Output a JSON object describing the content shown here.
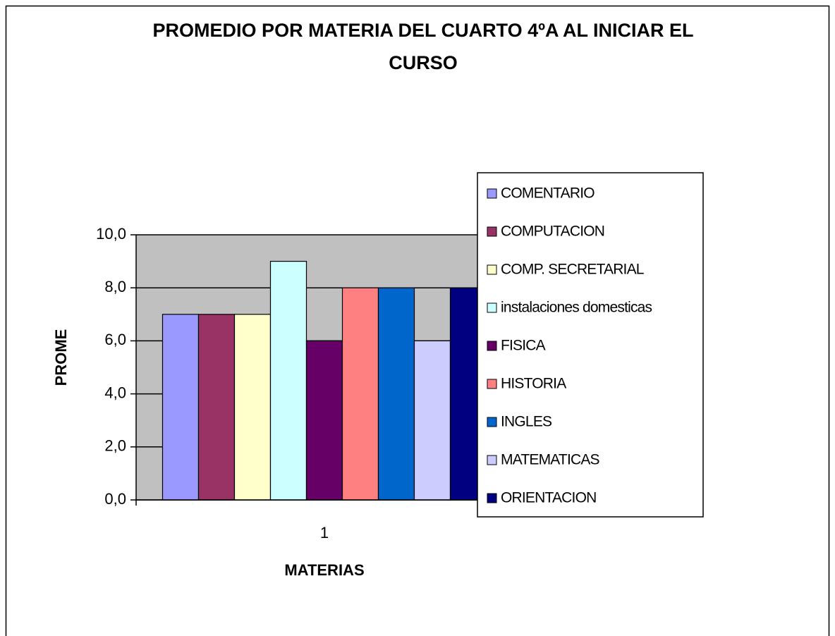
{
  "chart_data": {
    "type": "bar",
    "title": "PROMEDIO POR MATERIA DEL CUARTO  4ºA AL INICIAR EL\nCURSO",
    "x_label": "MATERIAS",
    "y_label": "PROME",
    "categories": [
      "1"
    ],
    "series": [
      {
        "name": "COMENTARIO",
        "color": "#9999ff",
        "values": [
          7
        ]
      },
      {
        "name": "COMPUTACION",
        "color": "#993366",
        "values": [
          7
        ]
      },
      {
        "name": "COMP. SECRETARIAL",
        "color": "#ffffcc",
        "values": [
          7
        ]
      },
      {
        "name": "instalaciones domesticas",
        "color": "#ccffff",
        "values": [
          9
        ]
      },
      {
        "name": "FISICA",
        "color": "#660066",
        "values": [
          6
        ]
      },
      {
        "name": "HISTORIA",
        "color": "#ff8080",
        "values": [
          8
        ]
      },
      {
        "name": "INGLES",
        "color": "#0066cc",
        "values": [
          8
        ]
      },
      {
        "name": "MATEMATICAS",
        "color": "#ccccff",
        "values": [
          6
        ]
      },
      {
        "name": "ORIENTACION",
        "color": "#000080",
        "values": [
          8
        ]
      }
    ],
    "ylim": [
      0,
      10
    ],
    "yticks": [
      {
        "value": 0,
        "label": "0,0"
      },
      {
        "value": 2,
        "label": "2,0"
      },
      {
        "value": 4,
        "label": "4,0"
      },
      {
        "value": 6,
        "label": "6,0"
      },
      {
        "value": 8,
        "label": "8,0"
      },
      {
        "value": 10,
        "label": "10,0"
      }
    ],
    "grid": true,
    "plot_background": "#c0c0c0",
    "legend": "right"
  }
}
